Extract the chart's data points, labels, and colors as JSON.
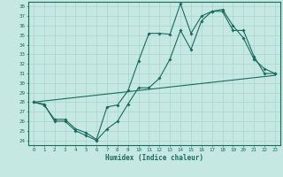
{
  "xlabel": "Humidex (Indice chaleur)",
  "bg_color": "#c5e8e3",
  "line_color": "#1a6b5e",
  "grid_color": "#a8d4ce",
  "xlim": [
    -0.5,
    23.5
  ],
  "ylim": [
    23.5,
    38.5
  ],
  "yticks": [
    24,
    25,
    26,
    27,
    28,
    29,
    30,
    31,
    32,
    33,
    34,
    35,
    36,
    37,
    38
  ],
  "xticks": [
    0,
    1,
    2,
    3,
    4,
    5,
    6,
    7,
    8,
    9,
    10,
    11,
    12,
    13,
    14,
    15,
    16,
    17,
    18,
    19,
    20,
    21,
    22,
    23
  ],
  "line1_x": [
    0,
    1,
    2,
    3,
    4,
    5,
    6,
    7,
    8,
    9,
    10,
    11,
    12,
    13,
    14,
    15,
    16,
    17,
    18,
    19,
    20,
    21,
    22,
    23
  ],
  "line1_y": [
    28.0,
    27.7,
    26.2,
    26.2,
    25.2,
    24.8,
    24.1,
    27.5,
    27.7,
    29.2,
    32.3,
    35.2,
    35.2,
    35.1,
    38.3,
    35.2,
    37.0,
    37.5,
    37.7,
    36.0,
    34.7,
    32.5,
    31.5,
    31.0
  ],
  "line2_x": [
    0,
    1,
    2,
    3,
    4,
    5,
    6,
    7,
    8,
    9,
    10,
    11,
    12,
    13,
    14,
    15,
    16,
    17,
    18,
    19,
    20,
    21,
    22,
    23
  ],
  "line2_y": [
    28.0,
    27.8,
    26.0,
    26.0,
    25.0,
    24.5,
    24.0,
    25.2,
    26.0,
    27.8,
    29.5,
    29.5,
    30.5,
    32.5,
    35.5,
    33.5,
    36.5,
    37.5,
    37.5,
    35.5,
    35.5,
    32.8,
    31.0,
    31.0
  ],
  "line3_x": [
    0,
    23
  ],
  "line3_y": [
    28.0,
    30.8
  ]
}
